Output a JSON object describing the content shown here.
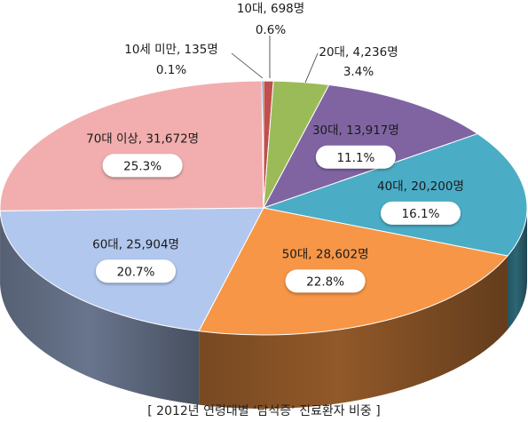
{
  "chart_data": {
    "type": "pie",
    "caption": "[ 2012년 연령대별 ‘담석증’ 진료환자 비중 ]",
    "slices": [
      {
        "label": "10대, 698명",
        "category": "10대",
        "count": 698,
        "percent": 0.6,
        "percent_text": "0.6%",
        "color": "#c0504d"
      },
      {
        "label": "20대, 4,236명",
        "category": "20대",
        "count": 4236,
        "percent": 3.4,
        "percent_text": "3.4%",
        "color": "#9bbb59"
      },
      {
        "label": "30대, 13,917명",
        "category": "30대",
        "count": 13917,
        "percent": 11.1,
        "percent_text": "11.1%",
        "color": "#8064a2"
      },
      {
        "label": "40대, 20,200명",
        "category": "40대",
        "count": 20200,
        "percent": 16.1,
        "percent_text": "16.1%",
        "color": "#4bacc6"
      },
      {
        "label": "50대, 28,602명",
        "category": "50대",
        "count": 28602,
        "percent": 22.8,
        "percent_text": "22.8%",
        "color": "#f79646"
      },
      {
        "label": "60대, 25,904명",
        "category": "60대",
        "count": 25904,
        "percent": 20.7,
        "percent_text": "20.7%",
        "color": "#b1c7ee"
      },
      {
        "label": "70대 이상, 31,672명",
        "category": "70대 이상",
        "count": 31672,
        "percent": 25.3,
        "percent_text": "25.3%",
        "color": "#f2aeae"
      },
      {
        "label": "10세 미만, 135명",
        "category": "10세 미만",
        "count": 135,
        "percent": 0.1,
        "percent_text": "0.1%",
        "color": "#1f4e79"
      }
    ]
  }
}
